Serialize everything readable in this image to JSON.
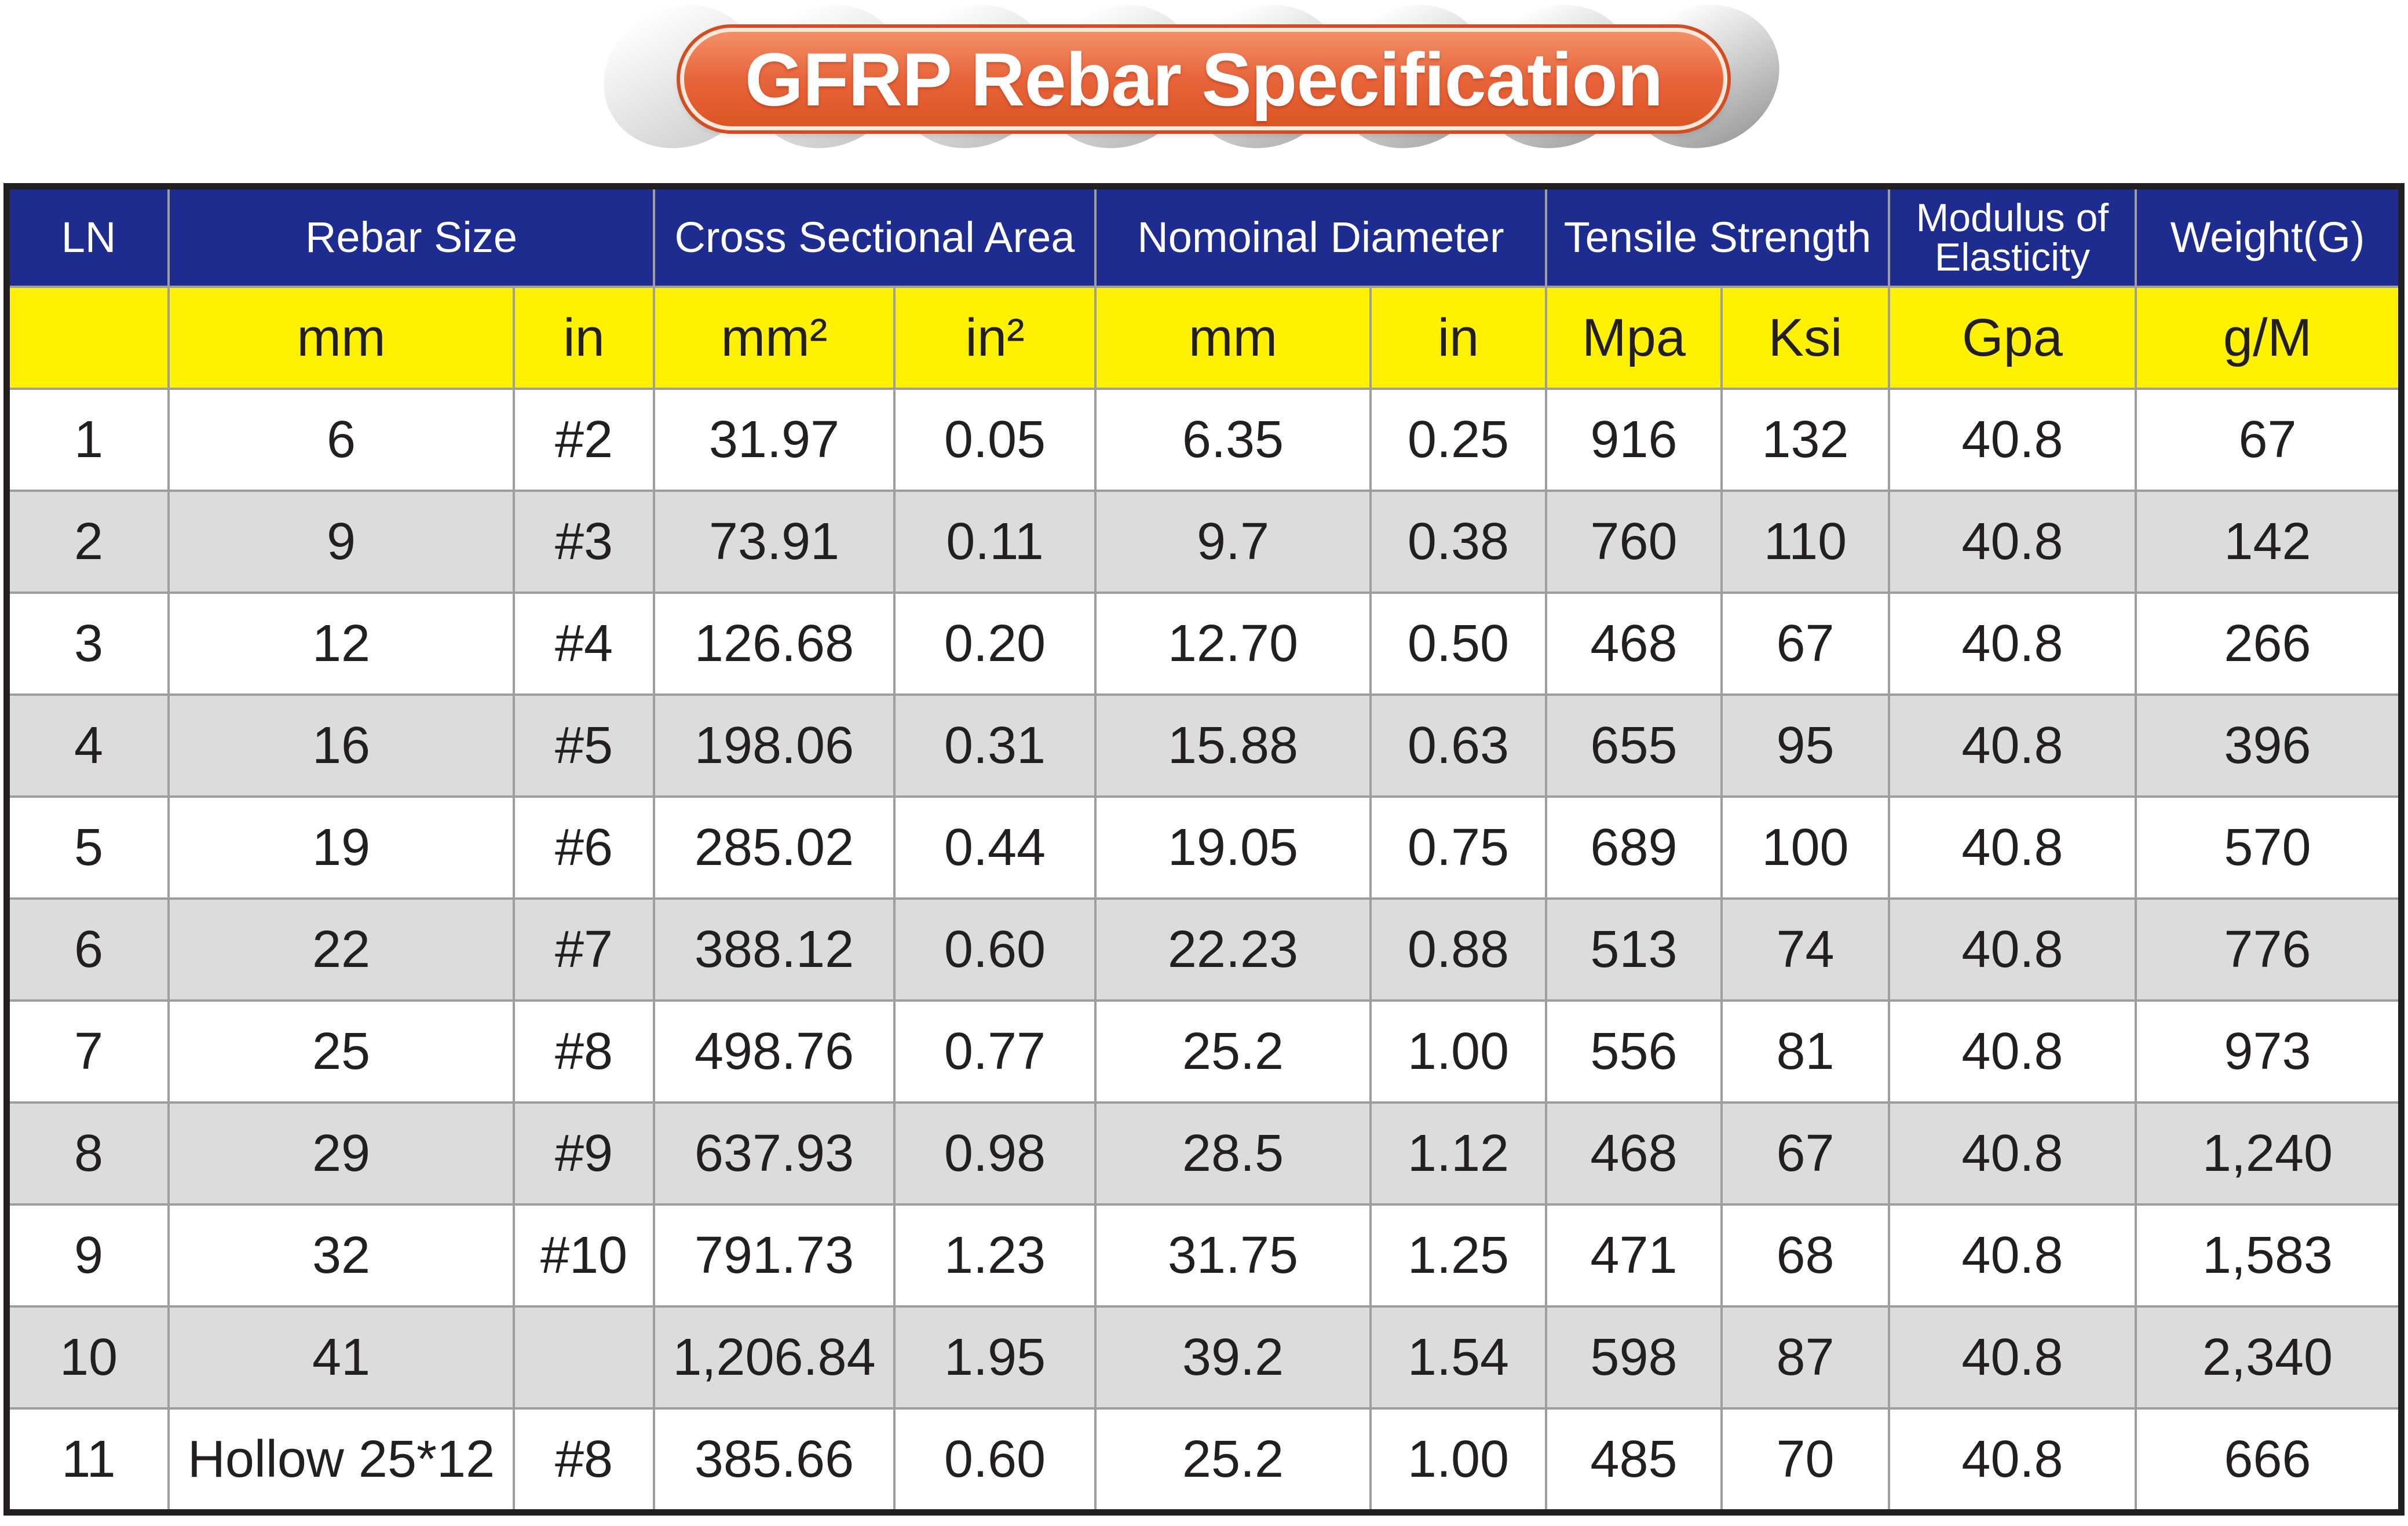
{
  "title": "GFRP Rebar Specification",
  "colors": {
    "title_pill": "#e8643a",
    "title_pill_edge": "#d24e22",
    "header_blue": "#1e2b8f",
    "unit_row_yellow": "#fff200",
    "alt_row_grey": "#dcdcdc",
    "grid_line": "#9e9e9e",
    "outer_border": "#231f20",
    "text_dark": "#231f20"
  },
  "table": {
    "group_headers": {
      "ln": "LN",
      "rebar_size": "Rebar Size",
      "cross_sectional_area": "Cross Sectional Area",
      "nominal_diameter": "Nomoinal Diameter",
      "tensile_strength": "Tensile Strength",
      "modulus_of_elasticity": [
        "Modulus of",
        "Elasticity"
      ],
      "weight": "Weight(G)"
    },
    "unit_headers": [
      "",
      "mm",
      "in",
      "mm²",
      "in²",
      "mm",
      "in",
      "Mpa",
      "Ksi",
      "Gpa",
      "g/M"
    ],
    "rows": [
      [
        "1",
        "6",
        "#2",
        "31.97",
        "0.05",
        "6.35",
        "0.25",
        "916",
        "132",
        "40.8",
        "67"
      ],
      [
        "2",
        "9",
        "#3",
        "73.91",
        "0.11",
        "9.7",
        "0.38",
        "760",
        "110",
        "40.8",
        "142"
      ],
      [
        "3",
        "12",
        "#4",
        "126.68",
        "0.20",
        "12.70",
        "0.50",
        "468",
        "67",
        "40.8",
        "266"
      ],
      [
        "4",
        "16",
        "#5",
        "198.06",
        "0.31",
        "15.88",
        "0.63",
        "655",
        "95",
        "40.8",
        "396"
      ],
      [
        "5",
        "19",
        "#6",
        "285.02",
        "0.44",
        "19.05",
        "0.75",
        "689",
        "100",
        "40.8",
        "570"
      ],
      [
        "6",
        "22",
        "#7",
        "388.12",
        "0.60",
        "22.23",
        "0.88",
        "513",
        "74",
        "40.8",
        "776"
      ],
      [
        "7",
        "25",
        "#8",
        "498.76",
        "0.77",
        "25.2",
        "1.00",
        "556",
        "81",
        "40.8",
        "973"
      ],
      [
        "8",
        "29",
        "#9",
        "637.93",
        "0.98",
        "28.5",
        "1.12",
        "468",
        "67",
        "40.8",
        "1,240"
      ],
      [
        "9",
        "32",
        "#10",
        "791.73",
        "1.23",
        "31.75",
        "1.25",
        "471",
        "68",
        "40.8",
        "1,583"
      ],
      [
        "10",
        "41",
        "",
        "1,206.84",
        "1.95",
        "39.2",
        "1.54",
        "598",
        "87",
        "40.8",
        "2,340"
      ],
      [
        "11",
        "Hollow 25*12",
        "#8",
        "385.66",
        "0.60",
        "25.2",
        "1.00",
        "485",
        "70",
        "40.8",
        "666"
      ]
    ]
  }
}
